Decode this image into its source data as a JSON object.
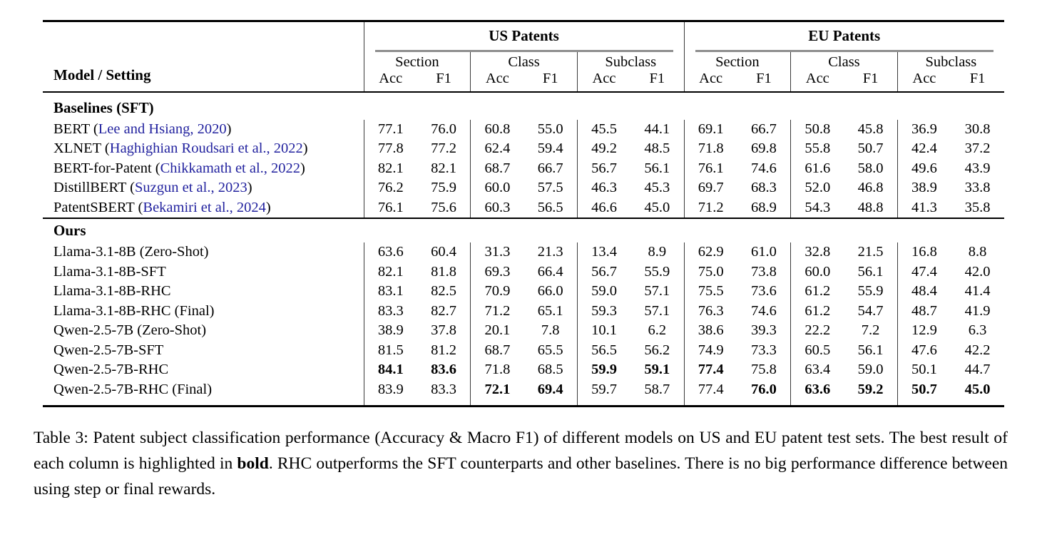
{
  "table": {
    "model_col_header": "Model / Setting",
    "groups": [
      {
        "label": "US Patents"
      },
      {
        "label": "EU Patents"
      }
    ],
    "subgroups": [
      "Section",
      "Class",
      "Subclass"
    ],
    "metrics": [
      "Acc",
      "F1"
    ],
    "sections": [
      {
        "label": "Baselines (SFT)",
        "rows": [
          {
            "name": "BERT",
            "citation": "Lee and Hsiang, 2020",
            "values": [
              "77.1",
              "76.0",
              "60.8",
              "55.0",
              "45.5",
              "44.1",
              "69.1",
              "66.7",
              "50.8",
              "45.8",
              "36.9",
              "30.8"
            ],
            "bold": []
          },
          {
            "name": "XLNET",
            "citation": "Haghighian Roudsari et al., 2022",
            "values": [
              "77.8",
              "77.2",
              "62.4",
              "59.4",
              "49.2",
              "48.5",
              "71.8",
              "69.8",
              "55.8",
              "50.7",
              "42.4",
              "37.2"
            ],
            "bold": []
          },
          {
            "name": "BERT-for-Patent",
            "citation": "Chikkamath et al., 2022",
            "values": [
              "82.1",
              "82.1",
              "68.7",
              "66.7",
              "56.7",
              "56.1",
              "76.1",
              "74.6",
              "61.6",
              "58.0",
              "49.6",
              "43.9"
            ],
            "bold": []
          },
          {
            "name": "DistillBERT",
            "citation": "Suzgun et al., 2023",
            "values": [
              "76.2",
              "75.9",
              "60.0",
              "57.5",
              "46.3",
              "45.3",
              "69.7",
              "68.3",
              "52.0",
              "46.8",
              "38.9",
              "33.8"
            ],
            "bold": []
          },
          {
            "name": "PatentSBERT",
            "citation": "Bekamiri et al., 2024",
            "values": [
              "76.1",
              "75.6",
              "60.3",
              "56.5",
              "46.6",
              "45.0",
              "71.2",
              "68.9",
              "54.3",
              "48.8",
              "41.3",
              "35.8"
            ],
            "bold": []
          }
        ]
      },
      {
        "label": "Ours",
        "rows": [
          {
            "name": "Llama-3.1-8B (Zero-Shot)",
            "values": [
              "63.6",
              "60.4",
              "31.3",
              "21.3",
              "13.4",
              "8.9",
              "62.9",
              "61.0",
              "32.8",
              "21.5",
              "16.8",
              "8.8"
            ],
            "bold": []
          },
          {
            "name": "Llama-3.1-8B-SFT",
            "values": [
              "82.1",
              "81.8",
              "69.3",
              "66.4",
              "56.7",
              "55.9",
              "75.0",
              "73.8",
              "60.0",
              "56.1",
              "47.4",
              "42.0"
            ],
            "bold": []
          },
          {
            "name": "Llama-3.1-8B-RHC",
            "values": [
              "83.1",
              "82.5",
              "70.9",
              "66.0",
              "59.0",
              "57.1",
              "75.5",
              "73.6",
              "61.2",
              "55.9",
              "48.4",
              "41.4"
            ],
            "bold": []
          },
          {
            "name": "Llama-3.1-8B-RHC (Final)",
            "values": [
              "83.3",
              "82.7",
              "71.2",
              "65.1",
              "59.3",
              "57.1",
              "76.3",
              "74.6",
              "61.2",
              "54.7",
              "48.7",
              "41.9"
            ],
            "bold": []
          },
          {
            "name": "Qwen-2.5-7B (Zero-Shot)",
            "values": [
              "38.9",
              "37.8",
              "20.1",
              "7.8",
              "10.1",
              "6.2",
              "38.6",
              "39.3",
              "22.2",
              "7.2",
              "12.9",
              "6.3"
            ],
            "bold": []
          },
          {
            "name": "Qwen-2.5-7B-SFT",
            "values": [
              "81.5",
              "81.2",
              "68.7",
              "65.5",
              "56.5",
              "56.2",
              "74.9",
              "73.3",
              "60.5",
              "56.1",
              "47.6",
              "42.2"
            ],
            "bold": []
          },
          {
            "name": "Qwen-2.5-7B-RHC",
            "values": [
              "84.1",
              "83.6",
              "71.8",
              "68.5",
              "59.9",
              "59.1",
              "77.4",
              "75.8",
              "63.4",
              "59.0",
              "50.1",
              "44.7"
            ],
            "bold": [
              0,
              1,
              4,
              5,
              6
            ]
          },
          {
            "name": "Qwen-2.5-7B-RHC (Final)",
            "values": [
              "83.9",
              "83.3",
              "72.1",
              "69.4",
              "59.7",
              "58.7",
              "77.4",
              "76.0",
              "63.6",
              "59.2",
              "50.7",
              "45.0"
            ],
            "bold": [
              2,
              3,
              7,
              8,
              9,
              10,
              11
            ]
          }
        ]
      }
    ]
  },
  "caption": {
    "parts": [
      {
        "text": "Table 3: Patent subject classification performance (Accuracy & Macro F1) of different models on US and EU patent test sets. The best result of each column is highlighted in ",
        "bold": false
      },
      {
        "text": "bold",
        "bold": true
      },
      {
        "text": ". RHC outperforms the SFT counterparts and other baselines. There is no big performance difference between using step or final rewards.",
        "bold": false
      }
    ]
  },
  "colors": {
    "citation_link": "#23239f",
    "cmidrule_gray": "#8e8e8e",
    "rule_black": "#000000"
  }
}
